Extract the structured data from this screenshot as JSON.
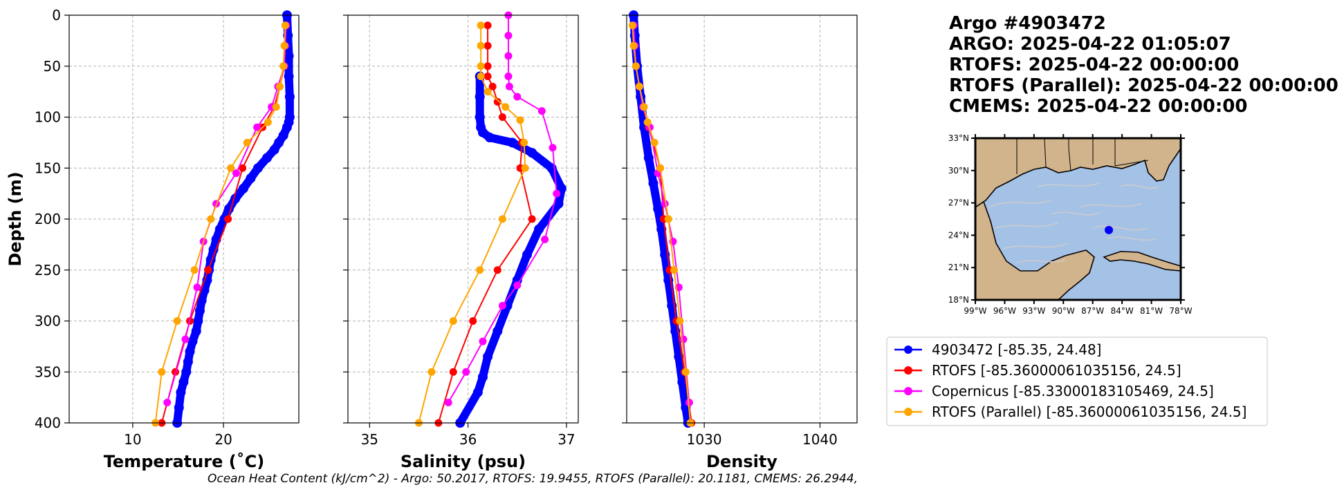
{
  "info": {
    "lines": [
      "Argo #4903472",
      "ARGO:  2025-04-22 01:05:07",
      "RTOFS: 2025-04-22 00:00:00",
      "RTOFS (Parallel): 2025-04-22 00:00:00",
      "CMEMS: 2025-04-22 00:00:00"
    ]
  },
  "footer": "Ocean Heat Content (kJ/cm^2) - Argo: 50.2017,  RTOFS: 19.9455,  RTOFS (Parallel): 20.1181,  CMEMS: 26.2944,",
  "map": {
    "lat_labels": [
      "33°N",
      "30°N",
      "27°N",
      "24°N",
      "21°N",
      "18°N"
    ],
    "lon_labels": [
      "99°W",
      "96°W",
      "93°W",
      "90°W",
      "87°W",
      "84°W",
      "81°W",
      "78°W"
    ],
    "extent": {
      "lon": [
        -99,
        -78
      ],
      "lat": [
        18,
        33
      ]
    },
    "float_position": {
      "lon": -85.35,
      "lat": 24.48
    },
    "colors": {
      "land": "#d2b48c",
      "ocean": "#a4c1e6",
      "streamlines": "#cccccc",
      "float": "#0000ff"
    }
  },
  "legend": [
    {
      "label": "4903472 [-85.35, 24.48]",
      "color": "#0000ff"
    },
    {
      "label": "RTOFS [-85.36000061035156, 24.5]",
      "color": "#ff0000"
    },
    {
      "label": "Copernicus [-85.33000183105469, 24.5]",
      "color": "#ff00ff"
    },
    {
      "label": "RTOFS (Parallel) [-85.36000061035156, 24.5]",
      "color": "#ffa500"
    }
  ],
  "chart_data": [
    {
      "type": "line",
      "xlabel": "Temperature (˚C)",
      "ylabel": "Depth (m)",
      "xlim": [
        3,
        28.3
      ],
      "ylim": [
        400,
        0
      ],
      "xticks": [
        10,
        20
      ],
      "yticks": [
        0,
        50,
        100,
        150,
        200,
        250,
        300,
        350,
        400
      ],
      "grid": true,
      "series": [
        {
          "name": "4903472 [-85.35, 24.48]",
          "color": "#0000ff",
          "style": "thick",
          "x": [
            27.0,
            27.1,
            27.2,
            27.2,
            27.3,
            27.3,
            27.2,
            27.0,
            26.6,
            26.1,
            25.6,
            24.8,
            23.8,
            23.0,
            22.2,
            21.3,
            20.6,
            20.1,
            19.6,
            19.2,
            18.9,
            18.6,
            18.4,
            18.2,
            17.9,
            17.6,
            17.4,
            17.2,
            17.0,
            16.6,
            16.3,
            16.1,
            15.9,
            15.6,
            15.3,
            15.1,
            14.9
          ],
          "y": [
            0,
            20,
            40,
            60,
            80,
            100,
            105,
            110,
            118,
            125,
            132,
            140,
            150,
            160,
            170,
            180,
            190,
            200,
            210,
            220,
            230,
            240,
            250,
            260,
            270,
            280,
            290,
            300,
            310,
            320,
            330,
            340,
            350,
            360,
            370,
            385,
            400
          ]
        },
        {
          "name": "RTOFS [-85.36000061035156, 24.5]",
          "color": "#ff0000",
          "x": [
            26.9,
            26.8,
            26.7,
            26.2,
            25.6,
            24.3,
            22.1,
            20.5,
            18.3,
            16.3,
            14.7,
            13.2
          ],
          "y": [
            10,
            30,
            50,
            70,
            90,
            110,
            150,
            200,
            250,
            300,
            350,
            400
          ]
        },
        {
          "name": "Copernicus [-85.33000183105469, 24.5]",
          "color": "#ff00ff",
          "x": [
            26.9,
            26.8,
            26.7,
            26.0,
            25.3,
            23.7,
            21.4,
            19.2,
            17.8,
            17.1,
            15.8,
            13.8
          ],
          "y": [
            10,
            30,
            50,
            70,
            90,
            110,
            155,
            185,
            222,
            267,
            318,
            380
          ]
        },
        {
          "name": "RTOFS (Parallel) [-85.36000061035156, 24.5]",
          "color": "#ffa500",
          "x": [
            26.8,
            26.7,
            26.6,
            26.2,
            25.8,
            24.9,
            22.6,
            20.8,
            18.6,
            16.8,
            14.9,
            13.2,
            12.5
          ],
          "y": [
            10,
            30,
            50,
            70,
            90,
            105,
            125,
            150,
            200,
            250,
            300,
            350,
            400
          ]
        }
      ]
    },
    {
      "type": "line",
      "xlabel": "Salinity (psu)",
      "ylabel": "",
      "xlim": [
        34.78,
        37.12
      ],
      "ylim": [
        400,
        0
      ],
      "xticks": [
        35,
        36,
        37
      ],
      "yticks": [
        0,
        50,
        100,
        150,
        200,
        250,
        300,
        350,
        400
      ],
      "grid": true,
      "series": [
        {
          "name": "4903472 [-85.35, 24.48]",
          "color": "#0000ff",
          "style": "thick",
          "x": [
            36.12,
            36.12,
            36.12,
            36.13,
            36.15,
            36.22,
            36.45,
            36.65,
            36.85,
            36.95,
            36.92,
            36.72,
            36.6,
            36.5,
            36.4,
            36.3,
            36.2,
            36.15,
            36.1,
            35.92
          ],
          "y": [
            60,
            80,
            100,
            110,
            115,
            120,
            125,
            135,
            150,
            170,
            185,
            210,
            235,
            260,
            285,
            310,
            335,
            355,
            370,
            400
          ]
        },
        {
          "name": "RTOFS [-85.36000061035156, 24.5]",
          "color": "#ff0000",
          "x": [
            36.2,
            36.2,
            36.2,
            36.2,
            36.25,
            36.3,
            36.35,
            36.55,
            36.53,
            36.65,
            36.3,
            36.05,
            35.85,
            35.7
          ],
          "y": [
            10,
            30,
            50,
            60,
            70,
            85,
            100,
            125,
            150,
            200,
            250,
            300,
            350,
            400
          ]
        },
        {
          "name": "Copernicus [-85.33000183105469, 24.5]",
          "color": "#ff00ff",
          "x": [
            36.41,
            36.41,
            36.41,
            36.41,
            36.42,
            36.5,
            36.75,
            36.86,
            36.9,
            36.78,
            36.5,
            36.35,
            36.15,
            35.98,
            35.8
          ],
          "y": [
            0,
            20,
            40,
            60,
            70,
            80,
            94,
            130,
            175,
            220,
            265,
            285,
            320,
            350,
            380
          ]
        },
        {
          "name": "RTOFS (Parallel) [-85.36000061035156, 24.5]",
          "color": "#ffa500",
          "x": [
            36.13,
            36.13,
            36.13,
            36.13,
            36.2,
            36.38,
            36.53,
            36.57,
            36.58,
            36.35,
            36.12,
            35.85,
            35.63,
            35.5
          ],
          "y": [
            10,
            30,
            50,
            60,
            75,
            90,
            103,
            125,
            150,
            200,
            250,
            300,
            350,
            400
          ]
        }
      ]
    },
    {
      "type": "line",
      "xlabel": "Density",
      "ylabel": "",
      "xlim": [
        1023.3,
        1043.2
      ],
      "ylim": [
        400,
        0
      ],
      "xticks": [
        1030,
        1040
      ],
      "yticks": [
        0,
        50,
        100,
        150,
        200,
        250,
        300,
        350,
        400
      ],
      "grid": true,
      "series": [
        {
          "name": "4903472 [-85.35, 24.48]",
          "color": "#0000ff",
          "style": "thick",
          "x": [
            1023.9,
            1024.0,
            1024.2,
            1024.5,
            1024.8,
            1025.2,
            1025.6,
            1026.0,
            1026.3,
            1026.6,
            1026.9,
            1027.2,
            1027.5,
            1027.8,
            1028.1,
            1028.4,
            1028.6
          ],
          "y": [
            0,
            20,
            50,
            80,
            110,
            140,
            165,
            190,
            210,
            235,
            260,
            285,
            310,
            335,
            360,
            385,
            400
          ]
        },
        {
          "name": "RTOFS [-85.36000061035156, 24.5]",
          "color": "#ff0000",
          "x": [
            1023.9,
            1024.0,
            1024.1,
            1024.4,
            1024.7,
            1025.2,
            1026.2,
            1026.5,
            1027.0,
            1027.6,
            1028.3,
            1028.9
          ],
          "y": [
            10,
            30,
            50,
            70,
            90,
            110,
            150,
            200,
            250,
            300,
            350,
            400
          ]
        },
        {
          "name": "Copernicus [-85.33000183105469, 24.5]",
          "color": "#ff00ff",
          "x": [
            1023.9,
            1024.0,
            1024.1,
            1024.4,
            1024.7,
            1025.3,
            1026.0,
            1026.6,
            1027.3,
            1027.8,
            1028.2,
            1028.7
          ],
          "y": [
            10,
            30,
            50,
            70,
            90,
            110,
            155,
            185,
            222,
            267,
            318,
            380
          ]
        },
        {
          "name": "RTOFS (Parallel) [-85.36000061035156, 24.5]",
          "color": "#ffa500",
          "x": [
            1023.8,
            1023.9,
            1024.1,
            1024.4,
            1024.8,
            1025.1,
            1025.7,
            1026.2,
            1026.9,
            1027.4,
            1027.9,
            1028.4,
            1028.8
          ],
          "y": [
            10,
            30,
            50,
            70,
            90,
            105,
            125,
            150,
            200,
            250,
            300,
            350,
            400
          ]
        }
      ]
    }
  ]
}
